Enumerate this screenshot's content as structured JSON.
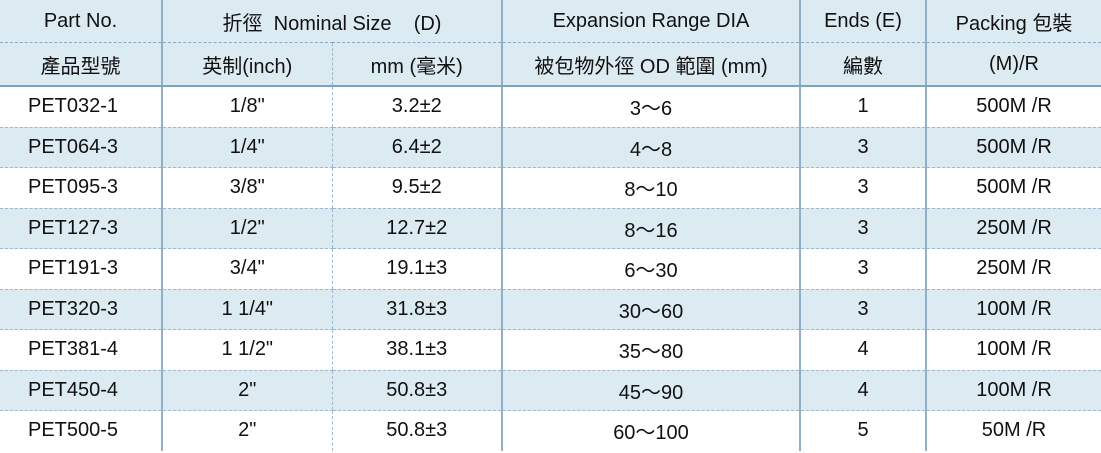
{
  "header": {
    "part_no_en": "Part No.",
    "part_no_zh": "產品型號",
    "nominal_size": "折徑  Nominal Size    (D)",
    "inch_label": "英制(inch)",
    "mm_label": "mm (毫米)",
    "expansion_en": "Expansion Range DIA",
    "expansion_zh": "被包物外徑 OD 範圍  (mm)",
    "ends_en": "Ends (E)",
    "ends_zh": "編數",
    "packing_en": "Packing 包裝",
    "packing_zh": "(M)/R"
  },
  "rows": [
    {
      "part": "PET032-1",
      "inch": "1/8\"",
      "mm": "3.2±2",
      "range": "3～6",
      "ends": "1",
      "packing": "500M /R"
    },
    {
      "part": "PET064-3",
      "inch": "1/4\"",
      "mm": "6.4±2",
      "range": "4～8",
      "ends": "3",
      "packing": "500M /R"
    },
    {
      "part": "PET095-3",
      "inch": "3/8\"",
      "mm": "9.5±2",
      "range": "8～10",
      "ends": "3",
      "packing": "500M /R"
    },
    {
      "part": "PET127-3",
      "inch": "1/2\"",
      "mm": "12.7±2",
      "range": "8～16",
      "ends": "3",
      "packing": "250M /R"
    },
    {
      "part": "PET191-3",
      "inch": "3/4\"",
      "mm": "19.1±3",
      "range": "6～30",
      "ends": "3",
      "packing": "250M /R"
    },
    {
      "part": "PET320-3",
      "inch": "1 1/4\"",
      "mm": "31.8±3",
      "range": "30～60",
      "ends": "3",
      "packing": "100M /R"
    },
    {
      "part": "PET381-4",
      "inch": "1 1/2\"",
      "mm": "38.1±3",
      "range": "35～80",
      "ends": "4",
      "packing": "100M /R"
    },
    {
      "part": "PET450-4",
      "inch": "2\"",
      "mm": "50.8±3",
      "range": "45～90",
      "ends": "4",
      "packing": "100M /R"
    },
    {
      "part": "PET500-5",
      "inch": "2\"",
      "mm": "50.8±3",
      "range": "60～100",
      "ends": "5",
      "packing": "50M /R"
    }
  ]
}
